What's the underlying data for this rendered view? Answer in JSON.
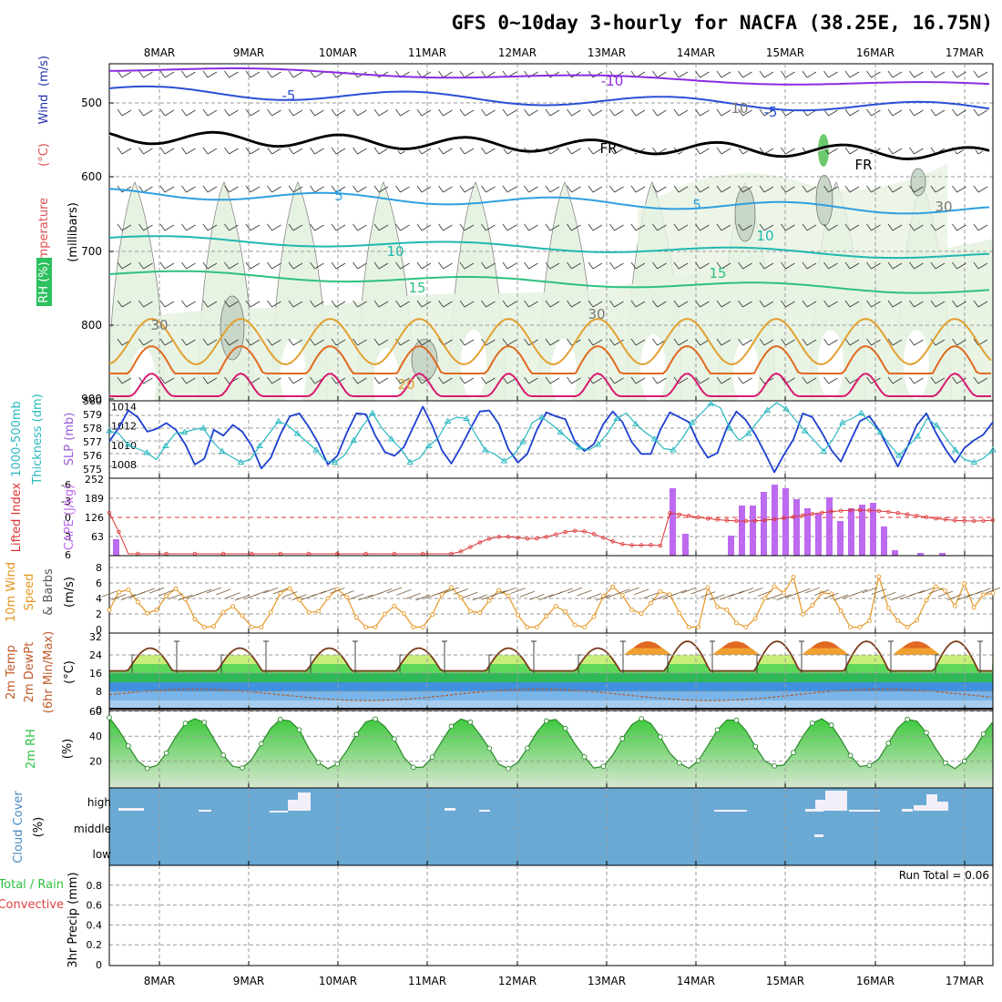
{
  "title": "GFS 0~10day 3-hourly for NACFA (38.25E, 16.75N)",
  "dates": [
    "8MAR",
    "9MAR",
    "10MAR",
    "11MAR",
    "12MAR",
    "13MAR",
    "14MAR",
    "15MAR",
    "16MAR",
    "17MAR"
  ],
  "colors": {
    "frame": "#000000",
    "grid": "#9a9a9a",
    "sky": "#6aa9d4",
    "cloud": "#f2eff8",
    "rh_light": "#e7f3e2",
    "cape": "#bd6af0",
    "lifted": "#dd3333",
    "slp": "#1c3fd0",
    "thick": "#29b8c0",
    "wind10": "#e69520",
    "barb": "#7a5b38"
  },
  "panels": {
    "upper": {
      "ylabels": [
        "Temperature",
        "(°C)",
        "Wind",
        "(m/s)",
        "RH (%)",
        "(millibars)"
      ],
      "yticks": [
        "500",
        "600",
        "700",
        "800",
        "900"
      ],
      "contour_labels": [
        "-10",
        "-5",
        "-5",
        "FR",
        "FR",
        "5",
        "5",
        "10",
        "10",
        "15",
        "15",
        "20",
        "30",
        "30",
        "30",
        "10"
      ]
    },
    "thickness": {
      "ylabels": [
        "1000-500mb",
        "Thickness (dm)",
        "SLP (mb)"
      ],
      "left_ticks": [
        "580",
        "579",
        "578",
        "577",
        "576",
        "575"
      ],
      "right_ticks": [
        "1014",
        "1012",
        "1010",
        "1008"
      ]
    },
    "cape": {
      "ylabels": [
        "Lifted Index",
        "CAPE (J/kg)"
      ],
      "left_ticks": [
        "-6",
        "-3",
        "0",
        "3",
        "6"
      ],
      "right_ticks": [
        "252",
        "189",
        "126",
        "63"
      ]
    },
    "wind10m": {
      "ylabels": [
        "10m Wind",
        "Speed",
        "& Barbs",
        "(m/s)"
      ],
      "yticks": [
        "8",
        "6",
        "4",
        "2",
        "0"
      ]
    },
    "temp2m": {
      "ylabels": [
        "2m Temp",
        "2m DewPt",
        "(6hr Min/Max)",
        "(°C)"
      ],
      "yticks": [
        "32",
        "24",
        "16",
        "8",
        "0"
      ]
    },
    "rh2m": {
      "ylabels": [
        "2m RH",
        "(%)"
      ],
      "yticks": [
        "60",
        "40",
        "20"
      ]
    },
    "cloud": {
      "ylabels": [
        "Cloud Cover",
        "(%)"
      ],
      "levels": [
        "high",
        "middle",
        "low"
      ]
    },
    "precip": {
      "ylabels": [
        "Total / Rain",
        "Convective",
        "3hr Precip (mm)"
      ],
      "yticks": [
        "0.8",
        "0.6",
        "0.4",
        "0.2",
        "0"
      ],
      "run_total": "Run Total = 0.06"
    }
  },
  "chart_data": [
    {
      "type": "line",
      "name": "slp_thickness",
      "series": [
        {
          "name": "SLP (mb)",
          "values": [
            1010.4,
            1011.8,
            1013.6,
            1012.9,
            1011.4,
            1011.7,
            1012.3,
            1011.6,
            1010.1,
            1008.0,
            1008.6,
            1011.6,
            1011.0,
            1012.1,
            1011.4,
            1009.9,
            1007.6,
            1008.7,
            1011.1,
            1013.0,
            1013.3,
            1011.9,
            1010.2,
            1008.0,
            1008.9,
            1011.3,
            1013.3,
            1013.2,
            1011.0,
            1009.3,
            1008.9,
            1009.8,
            1011.9,
            1014.0,
            1012.0,
            1009.5,
            1008.1,
            1009.8,
            1011.7,
            1013.5,
            1013.6,
            1012.2,
            1009.6,
            1008.2,
            1009.1,
            1011.6,
            1013.4,
            1013.0,
            1012.7,
            1010.4,
            1009.4,
            1010.1,
            1012.2,
            1013.5,
            1012.4,
            1010.3,
            1009.1,
            1009.1,
            1011.6,
            1013.4,
            1012.9,
            1012.4,
            1010.2,
            1008.7,
            1009.2,
            1011.8,
            1013.5,
            1012.6,
            1011.1,
            1009.2,
            1007.2,
            1009.0,
            1010.6,
            1013.3,
            1012.9,
            1011.3,
            1009.5,
            1008.3,
            1010.4,
            1012.5,
            1013.0,
            1011.6,
            1009.7,
            1007.8,
            1009.8,
            1012.1,
            1013.3,
            1011.3,
            1009.6,
            1008.2,
            1009.7,
            1010.5,
            1011.1,
            1012.4
          ]
        },
        {
          "name": "1000-500mb Thickness (dm)",
          "values": [
            577.8,
            577.6,
            576.8,
            576.5,
            576.2,
            575.7,
            576.7,
            577.6,
            577.7,
            577.9,
            578.0,
            577.0,
            576.3,
            575.9,
            575.5,
            575.7,
            576.7,
            577.6,
            578.5,
            578.2,
            577.6,
            577.0,
            576.4,
            575.6,
            575.5,
            576.0,
            577.1,
            578.2,
            579.1,
            578.0,
            577.2,
            576.5,
            575.5,
            575.8,
            576.7,
            577.3,
            578.5,
            578.8,
            578.7,
            577.5,
            576.4,
            576.1,
            575.6,
            576.0,
            577.0,
            578.4,
            578.8,
            578.3,
            577.7,
            577.1,
            576.6,
            576.4,
            576.8,
            577.6,
            578.7,
            579.1,
            578.3,
            577.7,
            577.2,
            576.5,
            576.4,
            577.3,
            578.4,
            579.1,
            579.8,
            579.5,
            578.0,
            577.1,
            577.6,
            578.5,
            579.3,
            580.2,
            579.4,
            578.6,
            577.8,
            577.1,
            576.3,
            577.2,
            578.4,
            578.7,
            579.1,
            578.4,
            577.7,
            576.8,
            576.0,
            576.7,
            577.4,
            578.7,
            578.2,
            577.3,
            576.4,
            575.7,
            575.5,
            575.8,
            576.4
          ]
        }
      ]
    },
    {
      "type": "bar",
      "name": "cape_lifted_index",
      "series": [
        {
          "name": "CAPE (J/kg)",
          "values": [
            18,
            0,
            0,
            0,
            0,
            0,
            0,
            0,
            0,
            0,
            0,
            0,
            0,
            0,
            0,
            0,
            0,
            0,
            0,
            0,
            0,
            0,
            0,
            0,
            0,
            0,
            0,
            0,
            0,
            0,
            0,
            0,
            0,
            0,
            0,
            0,
            0,
            0,
            0,
            0,
            0,
            0,
            0,
            0,
            0,
            0,
            0,
            0,
            0,
            0,
            0,
            0,
            0,
            0,
            0,
            0,
            0,
            0,
            0,
            0,
            0,
            0,
            0,
            0,
            0,
            0,
            0,
            0,
            0,
            0,
            0,
            0,
            0,
            0,
            0,
            0,
            0,
            0,
            0,
            0,
            0,
            0,
            0,
            0,
            0,
            0,
            0,
            0,
            0,
            0,
            0,
            0,
            0,
            0,
            0,
            0,
            0,
            0,
            0,
            0,
            0,
            0,
            0,
            0,
            0,
            0,
            0,
            0,
            0,
            0,
            0,
            0,
            0,
            0,
            0,
            0,
            0,
            0,
            0,
            0,
            0,
            0,
            0,
            0,
            0,
            0,
            0,
            0,
            0,
            0,
            0,
            0,
            0,
            0,
            0,
            0,
            0,
            0,
            0,
            0,
            0,
            0,
            0,
            0,
            0,
            0,
            0,
            0,
            0,
            0,
            0,
            0,
            0,
            0,
            0,
            0,
            0,
            0,
            0,
            0,
            0,
            0,
            0,
            0,
            0,
            0,
            0,
            0,
            0,
            0,
            0,
            0,
            0,
            0,
            0,
            0,
            0,
            0,
            0,
            0,
            0,
            0,
            0,
            0,
            0,
            0,
            0,
            0,
            0,
            0,
            0,
            0,
            0,
            0,
            0,
            0,
            0,
            0,
            0,
            0,
            0,
            0,
            0,
            0,
            0,
            0,
            0,
            0,
            0,
            0,
            0,
            0,
            0,
            0,
            0,
            0,
            0,
            0,
            0,
            0,
            0,
            0,
            0,
            0,
            0,
            0,
            0,
            0,
            0,
            0,
            0,
            0,
            0,
            0,
            0,
            0,
            0,
            0,
            0,
            0,
            0,
            0,
            0,
            0,
            0,
            0,
            0,
            0,
            0,
            0,
            0
          ]
        },
        {
          "name": "Lifted Index",
          "values": [
            0
          ]
        }
      ]
    }
  ]
}
